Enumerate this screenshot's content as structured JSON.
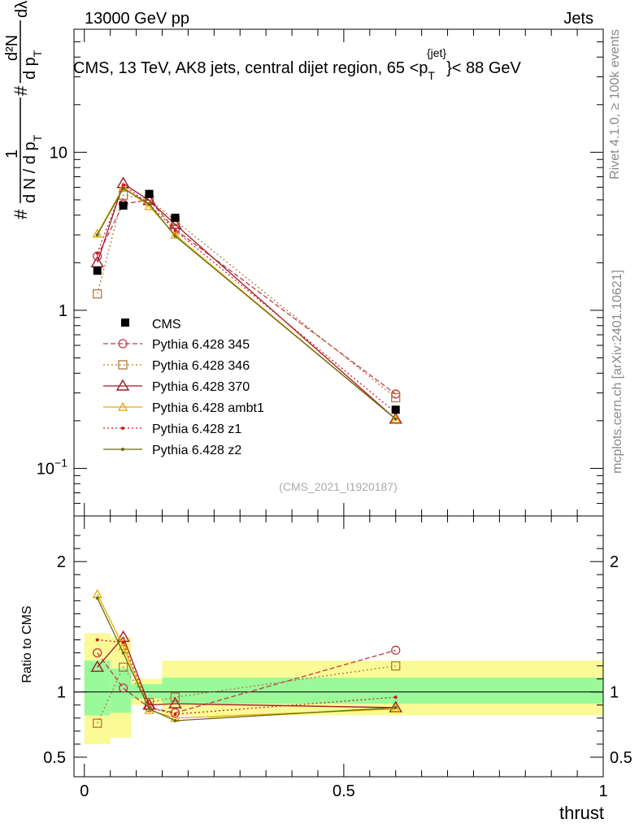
{
  "header": {
    "left": "13000 GeV pp",
    "right": "Jets",
    "analysis_ref": "(CMS_2021_I1920187)"
  },
  "side_labels": {
    "rivet": "Rivet 4.1.0, ≥ 100k events",
    "mcplots": "mcplots.cern.ch [arXiv:2401.10621]"
  },
  "colors": {
    "data": "#000000",
    "p345": "#c0384a",
    "p346": "#b07a3a",
    "p370": "#a0182a",
    "ambt1": "#e8a800",
    "z1": "#cc1f1f",
    "z2": "#6b6b10",
    "band_inner": "#9afa9a",
    "band_outer": "#fafa96"
  },
  "chart_data": [
    {
      "type": "line",
      "scale": "log",
      "title": "CMS, 13 TeV, AK8 jets, central dijet region, 65 <p",
      "title_sup": "{jet}",
      "title_sub": "T",
      "title_tail": "}< 88 GeV",
      "ylabel_top": "1",
      "ylabel_bottom": "d N / d p",
      "ylabel_sub": "T",
      "ylabel_right_top": "d²N",
      "ylabel_right_bottom": "d p",
      "ylabel_right_sub": "T",
      "ylabel_tail": "dλ",
      "ylabel_hash": "#",
      "xlim": [
        -0.02,
        1.0
      ],
      "ylim": [
        0.05,
        60
      ],
      "yticks": [
        {
          "v": 10,
          "label": "10"
        },
        {
          "v": 1,
          "label": "1"
        },
        {
          "v": 0.1,
          "label": "10",
          "sup": "−1"
        }
      ],
      "x": [
        0.025,
        0.075,
        0.125,
        0.175,
        0.6
      ],
      "data": {
        "name": "CMS",
        "values": [
          1.78,
          4.6,
          5.45,
          3.85,
          0.235
        ]
      },
      "series": [
        {
          "name": "Pythia 6.428 345",
          "key": "p345",
          "values": [
            2.2,
            4.7,
            5.0,
            3.25,
            0.295
          ]
        },
        {
          "name": "Pythia 6.428 346",
          "key": "p346",
          "values": [
            1.27,
            5.35,
            5.05,
            3.7,
            0.28
          ]
        },
        {
          "name": "Pythia 6.428 370",
          "key": "p370",
          "values": [
            2.0,
            6.35,
            4.95,
            3.5,
            0.205
          ]
        },
        {
          "name": "Pythia 6.428 ambt1",
          "key": "ambt1",
          "values": [
            3.05,
            6.0,
            4.55,
            3.0,
            0.205
          ]
        },
        {
          "name": "Pythia 6.428 z1",
          "key": "z1",
          "values": [
            2.3,
            6.2,
            4.7,
            3.2,
            0.225
          ]
        },
        {
          "name": "Pythia 6.428 z2",
          "key": "z2",
          "values": [
            3.0,
            5.9,
            4.7,
            2.95,
            0.205
          ]
        }
      ]
    },
    {
      "type": "line",
      "title": "",
      "ylabel": "Ratio to CMS",
      "xlabel": "thrust",
      "xlim": [
        -0.02,
        1.0
      ],
      "ylim": [
        0.35,
        2.35
      ],
      "yticks": [
        {
          "v": 2,
          "label": "2"
        },
        {
          "v": 1,
          "label": "1"
        },
        {
          "v": 0.5,
          "label": "0.5"
        }
      ],
      "xticks": [
        {
          "v": 0,
          "label": "0"
        },
        {
          "v": 0.5,
          "label": "0.5"
        },
        {
          "v": 1,
          "label": "1"
        }
      ],
      "reference": 1.0,
      "bins": [
        {
          "lo": 0.0,
          "hi": 0.05,
          "inner": [
            0.82,
            1.24
          ],
          "outer": [
            0.6,
            1.45
          ]
        },
        {
          "lo": 0.05,
          "hi": 0.09,
          "inner": [
            0.84,
            1.18
          ],
          "outer": [
            0.65,
            1.42
          ]
        },
        {
          "lo": 0.09,
          "hi": 0.15,
          "inner": [
            0.95,
            1.06
          ],
          "outer": [
            0.9,
            1.1
          ]
        },
        {
          "lo": 0.15,
          "hi": 1.0,
          "inner": [
            0.91,
            1.11
          ],
          "outer": [
            0.82,
            1.24
          ]
        }
      ],
      "x": [
        0.025,
        0.075,
        0.125,
        0.175,
        0.6
      ],
      "series": [
        {
          "name": "Pythia 6.428 345",
          "key": "p345",
          "values": [
            1.3,
            1.03,
            0.88,
            0.84,
            1.32
          ]
        },
        {
          "name": "Pythia 6.428 346",
          "key": "p346",
          "values": [
            0.76,
            1.19,
            0.92,
            0.96,
            1.2
          ]
        },
        {
          "name": "Pythia 6.428 370",
          "key": "p370",
          "values": [
            1.19,
            1.42,
            0.9,
            0.91,
            0.88
          ]
        },
        {
          "name": "Pythia 6.428 ambt1",
          "key": "ambt1",
          "values": [
            1.75,
            1.35,
            0.86,
            0.8,
            0.87
          ]
        },
        {
          "name": "Pythia 6.428 z1",
          "key": "z1",
          "values": [
            1.4,
            1.38,
            0.88,
            0.83,
            0.96
          ]
        },
        {
          "name": "Pythia 6.428 z2",
          "key": "z2",
          "values": [
            1.72,
            1.3,
            0.87,
            0.78,
            0.88
          ]
        }
      ]
    }
  ]
}
